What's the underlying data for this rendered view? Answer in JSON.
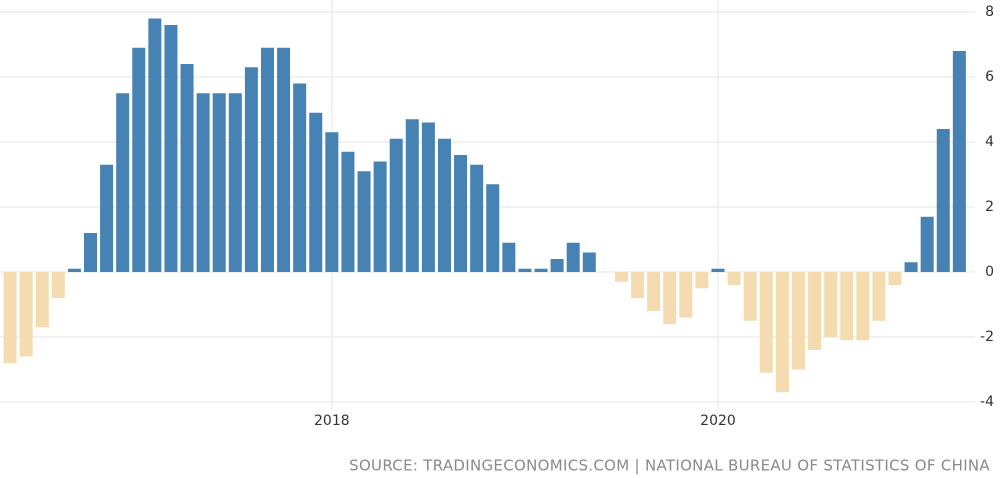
{
  "chart_data": {
    "type": "bar",
    "source": "SOURCE: TRADINGECONOMICS.COM | NATIONAL BUREAU OF STATISTICS OF CHINA",
    "categories": [
      null,
      null,
      null,
      null,
      null,
      null,
      null,
      null,
      null,
      null,
      null,
      null,
      null,
      null,
      null,
      null,
      null,
      null,
      null,
      null,
      "2018",
      null,
      null,
      null,
      null,
      null,
      null,
      null,
      null,
      null,
      null,
      null,
      null,
      null,
      null,
      null,
      null,
      null,
      null,
      null,
      null,
      null,
      null,
      null,
      "2020",
      null,
      null,
      null,
      null,
      null,
      null,
      null,
      null,
      null,
      null,
      null,
      null,
      null,
      null,
      null
    ],
    "values": [
      -2.8,
      -2.6,
      -1.7,
      -0.8,
      0.1,
      1.2,
      3.3,
      5.5,
      6.9,
      7.8,
      7.6,
      6.4,
      5.5,
      5.5,
      5.5,
      6.3,
      6.9,
      6.9,
      5.8,
      4.9,
      4.3,
      3.7,
      3.1,
      3.4,
      4.1,
      4.7,
      4.6,
      4.1,
      3.6,
      3.3,
      2.7,
      0.9,
      0.1,
      0.1,
      0.4,
      0.9,
      0.6,
      0,
      -0.3,
      -0.8,
      -1.2,
      -1.6,
      -1.4,
      -0.5,
      0.1,
      -0.4,
      -1.5,
      -3.1,
      -3.7,
      -3.0,
      -2.4,
      -2.0,
      -2.1,
      -2.1,
      -1.5,
      -0.4,
      0.3,
      1.7,
      4.4,
      6.8
    ],
    "positive_color": "#4682b4",
    "negative_color": "#f5dcb0",
    "ylim": [
      -4,
      8
    ],
    "yticks": [
      -4,
      -2,
      0,
      2,
      4,
      6,
      8
    ],
    "grid": true
  }
}
